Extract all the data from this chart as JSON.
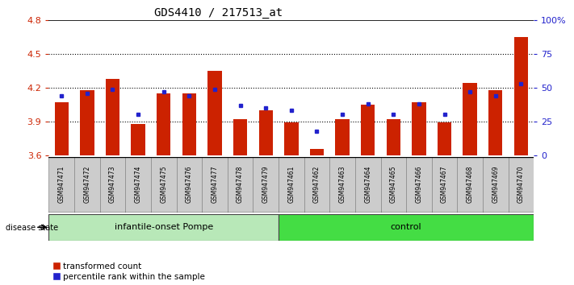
{
  "title": "GDS4410 / 217513_at",
  "samples": [
    "GSM947471",
    "GSM947472",
    "GSM947473",
    "GSM947474",
    "GSM947475",
    "GSM947476",
    "GSM947477",
    "GSM947478",
    "GSM947479",
    "GSM947461",
    "GSM947462",
    "GSM947463",
    "GSM947464",
    "GSM947465",
    "GSM947466",
    "GSM947467",
    "GSM947468",
    "GSM947469",
    "GSM947470"
  ],
  "red_values": [
    4.07,
    4.18,
    4.28,
    3.88,
    4.15,
    4.15,
    4.35,
    3.92,
    4.0,
    3.89,
    3.66,
    3.92,
    4.05,
    3.92,
    4.07,
    3.89,
    4.24,
    4.18,
    4.65
  ],
  "blue_percentiles": [
    44,
    46,
    49,
    30,
    47,
    44,
    49,
    37,
    35,
    33,
    18,
    30,
    38,
    30,
    38,
    30,
    47,
    44,
    53
  ],
  "groups": [
    {
      "label": "infantile-onset Pompe",
      "start": 0,
      "end": 9,
      "color": "#b8e8b8"
    },
    {
      "label": "control",
      "start": 9,
      "end": 19,
      "color": "#44dd44"
    }
  ],
  "ylim_left": [
    3.6,
    4.8
  ],
  "ylim_right": [
    0,
    100
  ],
  "left_ticks": [
    3.6,
    3.9,
    4.2,
    4.5,
    4.8
  ],
  "right_ticks": [
    0,
    25,
    50,
    75,
    100
  ],
  "right_tick_labels": [
    "0",
    "25",
    "50",
    "75",
    "100%"
  ],
  "bar_color": "#CC2200",
  "dot_color": "#2222CC",
  "legend_items": [
    "transformed count",
    "percentile rank within the sample"
  ],
  "disease_state_label": "disease state",
  "n_samples": 19,
  "n_pompe": 9
}
